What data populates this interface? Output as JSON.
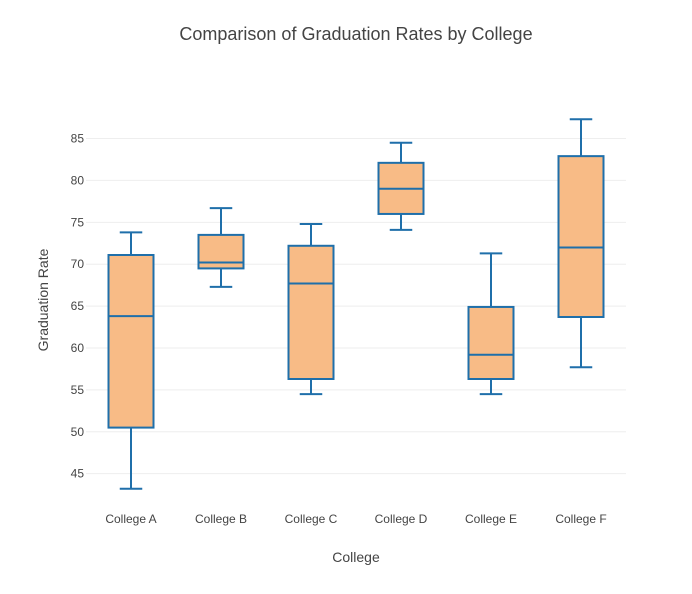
{
  "chart_data": {
    "type": "box",
    "title": "Comparison of Graduation Rates by College",
    "xlabel": "College",
    "ylabel": "Graduation Rate",
    "categories": [
      "College A",
      "College B",
      "College C",
      "College D",
      "College E",
      "College F"
    ],
    "boxes": [
      {
        "min": 43.2,
        "q1": 50.5,
        "median": 63.8,
        "q3": 71.1,
        "max": 73.8
      },
      {
        "min": 67.3,
        "q1": 69.5,
        "median": 70.2,
        "q3": 73.5,
        "max": 76.7
      },
      {
        "min": 54.5,
        "q1": 56.3,
        "median": 67.7,
        "q3": 72.2,
        "max": 74.8
      },
      {
        "min": 74.1,
        "q1": 76.0,
        "median": 79.0,
        "q3": 82.1,
        "max": 84.5
      },
      {
        "min": 54.5,
        "q1": 56.3,
        "median": 59.2,
        "q3": 64.9,
        "max": 71.3
      },
      {
        "min": 57.7,
        "q1": 63.7,
        "median": 72.0,
        "q3": 82.9,
        "max": 87.3
      }
    ],
    "yticks": [
      45,
      50,
      55,
      60,
      65,
      70,
      75,
      80,
      85
    ],
    "ylim": [
      41.5,
      89.6
    ],
    "grid": true,
    "colors": {
      "fill": "#f8bb86",
      "line": "#1f6faa",
      "grid": "#eeeeee",
      "text": "#444444"
    }
  }
}
